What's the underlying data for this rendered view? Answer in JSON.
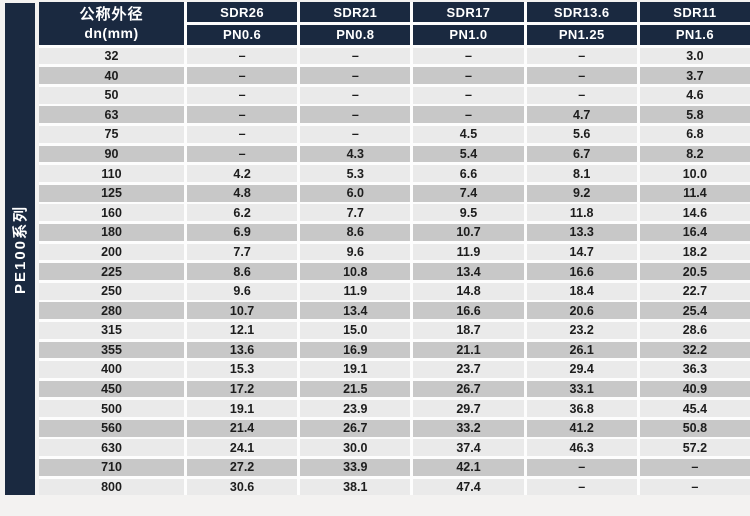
{
  "colors": {
    "header_navy": "#1a2940",
    "row_light": "#eaeaea",
    "row_dark": "#c8c8c8",
    "grid_gap_white": "#fdfdfd",
    "page_background": "#f3f2f1",
    "header_text": "#ffffff",
    "cell_text": "#1d1d1d"
  },
  "chart_data": {
    "type": "table",
    "title": "PE100系列",
    "row_header": {
      "line1": "公称外径",
      "line2": "dn(mm)"
    },
    "columns": [
      {
        "sdr": "SDR26",
        "pn": "PN0.6"
      },
      {
        "sdr": "SDR21",
        "pn": "PN0.8"
      },
      {
        "sdr": "SDR17",
        "pn": "PN1.0"
      },
      {
        "sdr": "SDR13.6",
        "pn": "PN1.25"
      },
      {
        "sdr": "SDR11",
        "pn": "PN1.6"
      }
    ],
    "rows": [
      {
        "dn": "32",
        "values": [
          "–",
          "–",
          "–",
          "–",
          "3.0"
        ]
      },
      {
        "dn": "40",
        "values": [
          "–",
          "–",
          "–",
          "–",
          "3.7"
        ]
      },
      {
        "dn": "50",
        "values": [
          "–",
          "–",
          "–",
          "–",
          "4.6"
        ]
      },
      {
        "dn": "63",
        "values": [
          "–",
          "–",
          "–",
          "4.7",
          "5.8"
        ]
      },
      {
        "dn": "75",
        "values": [
          "–",
          "–",
          "4.5",
          "5.6",
          "6.8"
        ]
      },
      {
        "dn": "90",
        "values": [
          "–",
          "4.3",
          "5.4",
          "6.7",
          "8.2"
        ]
      },
      {
        "dn": "110",
        "values": [
          "4.2",
          "5.3",
          "6.6",
          "8.1",
          "10.0"
        ]
      },
      {
        "dn": "125",
        "values": [
          "4.8",
          "6.0",
          "7.4",
          "9.2",
          "11.4"
        ]
      },
      {
        "dn": "160",
        "values": [
          "6.2",
          "7.7",
          "9.5",
          "11.8",
          "14.6"
        ]
      },
      {
        "dn": "180",
        "values": [
          "6.9",
          "8.6",
          "10.7",
          "13.3",
          "16.4"
        ]
      },
      {
        "dn": "200",
        "values": [
          "7.7",
          "9.6",
          "11.9",
          "14.7",
          "18.2"
        ]
      },
      {
        "dn": "225",
        "values": [
          "8.6",
          "10.8",
          "13.4",
          "16.6",
          "20.5"
        ]
      },
      {
        "dn": "250",
        "values": [
          "9.6",
          "11.9",
          "14.8",
          "18.4",
          "22.7"
        ]
      },
      {
        "dn": "280",
        "values": [
          "10.7",
          "13.4",
          "16.6",
          "20.6",
          "25.4"
        ]
      },
      {
        "dn": "315",
        "values": [
          "12.1",
          "15.0",
          "18.7",
          "23.2",
          "28.6"
        ]
      },
      {
        "dn": "355",
        "values": [
          "13.6",
          "16.9",
          "21.1",
          "26.1",
          "32.2"
        ]
      },
      {
        "dn": "400",
        "values": [
          "15.3",
          "19.1",
          "23.7",
          "29.4",
          "36.3"
        ]
      },
      {
        "dn": "450",
        "values": [
          "17.2",
          "21.5",
          "26.7",
          "33.1",
          "40.9"
        ]
      },
      {
        "dn": "500",
        "values": [
          "19.1",
          "23.9",
          "29.7",
          "36.8",
          "45.4"
        ]
      },
      {
        "dn": "560",
        "values": [
          "21.4",
          "26.7",
          "33.2",
          "41.2",
          "50.8"
        ]
      },
      {
        "dn": "630",
        "values": [
          "24.1",
          "30.0",
          "37.4",
          "46.3",
          "57.2"
        ]
      },
      {
        "dn": "710",
        "values": [
          "27.2",
          "33.9",
          "42.1",
          "–",
          "–"
        ]
      },
      {
        "dn": "800",
        "values": [
          "30.6",
          "38.1",
          "47.4",
          "–",
          "–"
        ]
      }
    ]
  }
}
